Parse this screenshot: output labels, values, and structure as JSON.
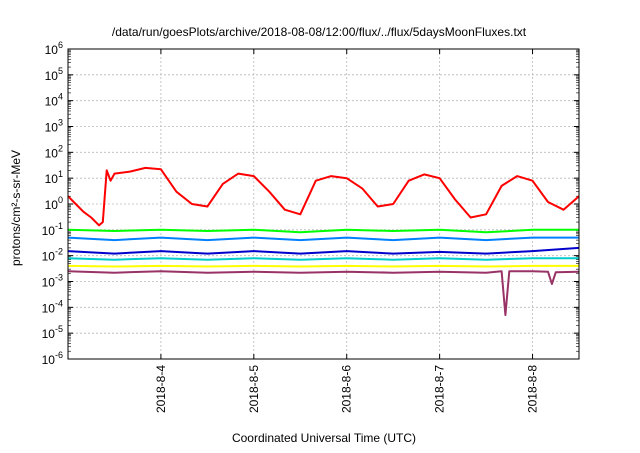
{
  "chart_data": {
    "type": "line",
    "title": "/data/run/goesPlots/archive/2018-08-08/12:00/flux/../flux/5daysMoonFluxes.txt",
    "xlabel": "Coordinated Universal Time (UTC)",
    "ylabel": "protons/cm²-s-sr-MeV",
    "yscale": "log",
    "ylim": [
      "1e-6",
      "1e6"
    ],
    "xlim": [
      "2018-08-03T00:00",
      "2018-08-08T12:00"
    ],
    "y_ticks": [
      {
        "base": "10",
        "exp": "-6",
        "value": "1e-6"
      },
      {
        "base": "10",
        "exp": "-5",
        "value": "1e-5"
      },
      {
        "base": "10",
        "exp": "-4",
        "value": "1e-4"
      },
      {
        "base": "10",
        "exp": "-3",
        "value": "1e-3"
      },
      {
        "base": "10",
        "exp": "-2",
        "value": "1e-2"
      },
      {
        "base": "10",
        "exp": "-1",
        "value": "1e-1"
      },
      {
        "base": "10",
        "exp": "0",
        "value": "1"
      },
      {
        "base": "10",
        "exp": "1",
        "value": "1e1"
      },
      {
        "base": "10",
        "exp": "2",
        "value": "1e2"
      },
      {
        "base": "10",
        "exp": "3",
        "value": "1e3"
      },
      {
        "base": "10",
        "exp": "4",
        "value": "1e4"
      },
      {
        "base": "10",
        "exp": "5",
        "value": "1e5"
      },
      {
        "base": "10",
        "exp": "6",
        "value": "1e6"
      }
    ],
    "x_ticks": [
      {
        "label": "2018-8-4",
        "value": "2018-08-04T00:00"
      },
      {
        "label": "2018-8-5",
        "value": "2018-08-05T00:00"
      },
      {
        "label": "2018-8-6",
        "value": "2018-08-06T00:00"
      },
      {
        "label": "2018-8-7",
        "value": "2018-08-07T00:00"
      },
      {
        "label": "2018-8-8",
        "value": "2018-08-08T00:00"
      }
    ],
    "grid": true,
    "legend": "none",
    "series": [
      {
        "color": "#ff0000",
        "x": [
          "2018-08-03T00:00",
          "2018-08-03T02:00",
          "2018-08-03T04:00",
          "2018-08-03T06:00",
          "2018-08-03T08:00",
          "2018-08-03T09:00",
          "2018-08-03T10:00",
          "2018-08-03T11:00",
          "2018-08-03T12:00",
          "2018-08-03T16:00",
          "2018-08-03T20:00",
          "2018-08-04T00:00",
          "2018-08-04T04:00",
          "2018-08-04T08:00",
          "2018-08-04T12:00",
          "2018-08-04T16:00",
          "2018-08-04T20:00",
          "2018-08-05T00:00",
          "2018-08-05T04:00",
          "2018-08-05T08:00",
          "2018-08-05T12:00",
          "2018-08-05T16:00",
          "2018-08-05T20:00",
          "2018-08-06T00:00",
          "2018-08-06T04:00",
          "2018-08-06T08:00",
          "2018-08-06T12:00",
          "2018-08-06T16:00",
          "2018-08-06T20:00",
          "2018-08-07T00:00",
          "2018-08-07T04:00",
          "2018-08-07T08:00",
          "2018-08-07T12:00",
          "2018-08-07T16:00",
          "2018-08-07T20:00",
          "2018-08-08T00:00",
          "2018-08-08T04:00",
          "2018-08-08T08:00",
          "2018-08-08T12:00"
        ],
        "values": [
          "2",
          "1",
          "0.5",
          "0.3",
          "0.15",
          "0.2",
          "20",
          "8",
          "15",
          "18",
          "25",
          "22",
          "3",
          "1",
          "0.8",
          "6",
          "15",
          "12",
          "3",
          "0.6",
          "0.4",
          "8",
          "12",
          "10",
          "4",
          "0.8",
          "1",
          "8",
          "14",
          "10",
          "1.5",
          "0.3",
          "0.4",
          "5",
          "12",
          "8",
          "1.2",
          "0.6",
          "2"
        ]
      },
      {
        "color": "#00ff00",
        "x": [
          "2018-08-03T00:00",
          "2018-08-03T12:00",
          "2018-08-04T00:00",
          "2018-08-04T12:00",
          "2018-08-05T00:00",
          "2018-08-05T12:00",
          "2018-08-06T00:00",
          "2018-08-06T12:00",
          "2018-08-07T00:00",
          "2018-08-07T12:00",
          "2018-08-08T00:00",
          "2018-08-08T12:00"
        ],
        "values": [
          "0.1",
          "0.09",
          "0.1",
          "0.09",
          "0.1",
          "0.08",
          "0.1",
          "0.09",
          "0.1",
          "0.08",
          "0.1",
          "0.1"
        ]
      },
      {
        "color": "#0080ff",
        "x": [
          "2018-08-03T00:00",
          "2018-08-03T12:00",
          "2018-08-04T00:00",
          "2018-08-04T12:00",
          "2018-08-05T00:00",
          "2018-08-05T12:00",
          "2018-08-06T00:00",
          "2018-08-06T12:00",
          "2018-08-07T00:00",
          "2018-08-07T12:00",
          "2018-08-08T00:00",
          "2018-08-08T12:00"
        ],
        "values": [
          "0.05",
          "0.04",
          "0.05",
          "0.04",
          "0.05",
          "0.04",
          "0.05",
          "0.04",
          "0.05",
          "0.04",
          "0.05",
          "0.05"
        ]
      },
      {
        "color": "#0000cc",
        "x": [
          "2018-08-03T00:00",
          "2018-08-03T12:00",
          "2018-08-04T00:00",
          "2018-08-04T12:00",
          "2018-08-05T00:00",
          "2018-08-05T12:00",
          "2018-08-06T00:00",
          "2018-08-06T12:00",
          "2018-08-07T00:00",
          "2018-08-07T12:00",
          "2018-08-08T00:00",
          "2018-08-08T12:00"
        ],
        "values": [
          "0.015",
          "0.012",
          "0.015",
          "0.012",
          "0.015",
          "0.012",
          "0.015",
          "0.012",
          "0.014",
          "0.012",
          "0.015",
          "0.02"
        ]
      },
      {
        "color": "#00cccc",
        "x": [
          "2018-08-03T00:00",
          "2018-08-03T12:00",
          "2018-08-04T00:00",
          "2018-08-04T12:00",
          "2018-08-05T00:00",
          "2018-08-05T12:00",
          "2018-08-06T00:00",
          "2018-08-06T12:00",
          "2018-08-07T00:00",
          "2018-08-07T12:00",
          "2018-08-08T00:00",
          "2018-08-08T12:00"
        ],
        "values": [
          "0.008",
          "0.007",
          "0.008",
          "0.007",
          "0.008",
          "0.007",
          "0.008",
          "0.007",
          "0.008",
          "0.007",
          "0.008",
          "0.008"
        ]
      },
      {
        "color": "#ffff00",
        "x": [
          "2018-08-03T00:00",
          "2018-08-03T12:00",
          "2018-08-04T00:00",
          "2018-08-04T12:00",
          "2018-08-05T00:00",
          "2018-08-05T12:00",
          "2018-08-06T00:00",
          "2018-08-06T12:00",
          "2018-08-07T00:00",
          "2018-08-07T12:00",
          "2018-08-08T00:00",
          "2018-08-08T12:00"
        ],
        "values": [
          "0.004",
          "0.0038",
          "0.004",
          "0.0038",
          "0.004",
          "0.0038",
          "0.004",
          "0.0038",
          "0.004",
          "0.0038",
          "0.004",
          "0.004"
        ]
      },
      {
        "color": "#993366",
        "x": [
          "2018-08-03T00:00",
          "2018-08-03T12:00",
          "2018-08-04T00:00",
          "2018-08-04T12:00",
          "2018-08-05T00:00",
          "2018-08-05T12:00",
          "2018-08-06T00:00",
          "2018-08-06T12:00",
          "2018-08-07T00:00",
          "2018-08-07T12:00",
          "2018-08-07T16:00",
          "2018-08-07T17:00",
          "2018-08-07T18:00",
          "2018-08-08T00:00",
          "2018-08-08T04:00",
          "2018-08-08T05:00",
          "2018-08-08T06:00",
          "2018-08-08T12:00"
        ],
        "values": [
          "0.0025",
          "0.0022",
          "0.0025",
          "0.0022",
          "0.0024",
          "0.0022",
          "0.0024",
          "0.0022",
          "0.0024",
          "0.0022",
          "0.0025",
          "0.00005",
          "0.0025",
          "0.0025",
          "0.0024",
          "0.0008",
          "0.0023",
          "0.0024"
        ]
      }
    ]
  }
}
